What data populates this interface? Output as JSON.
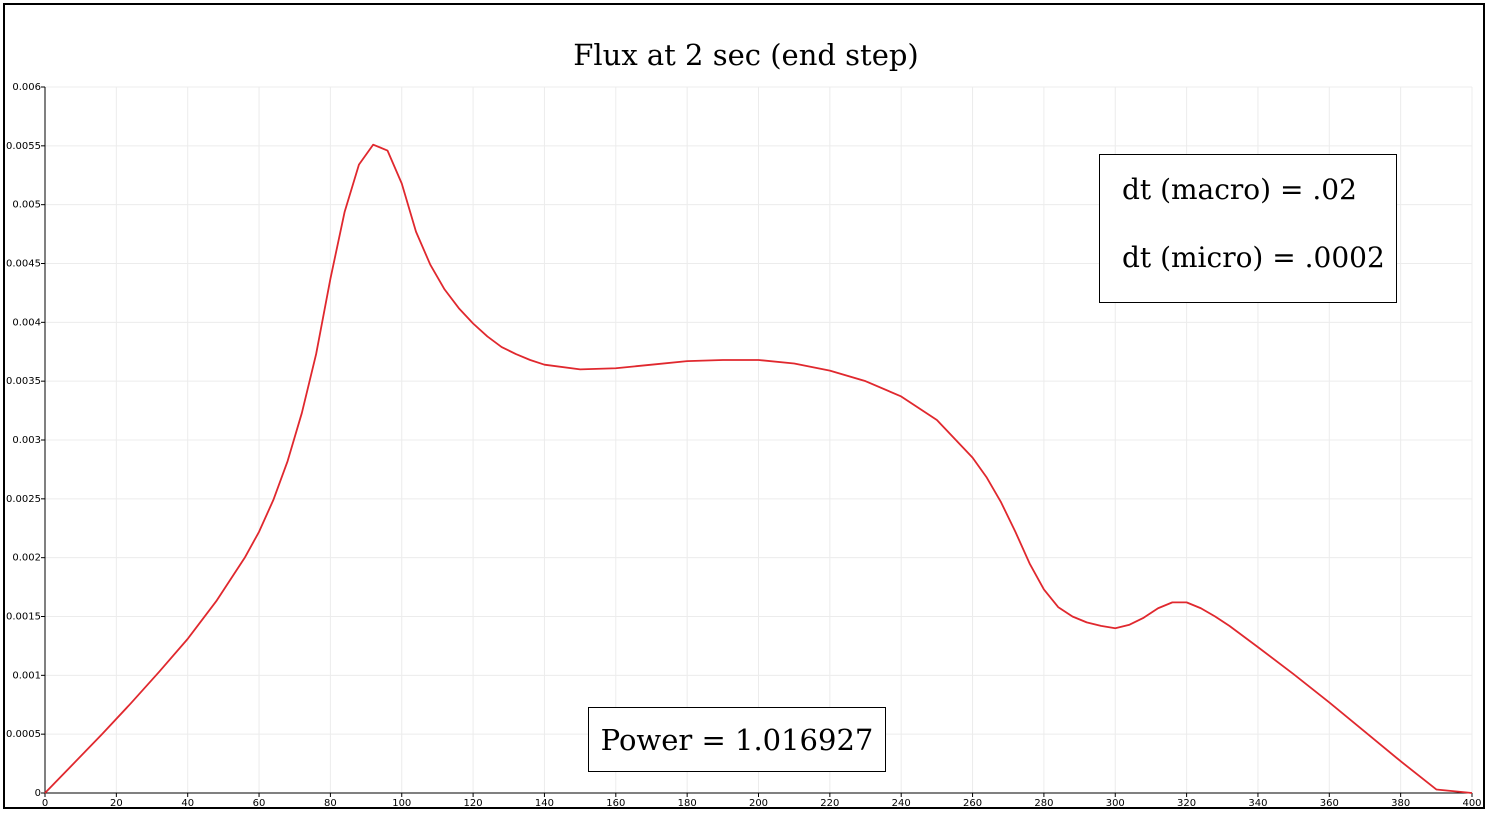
{
  "chart_data": {
    "type": "line",
    "title": "Flux at 2 sec (end step)",
    "xlabel": "",
    "ylabel": "",
    "xlim": [
      0,
      400
    ],
    "ylim": [
      0,
      0.006
    ],
    "grid": true,
    "x_ticks": [
      "0",
      "20",
      "40",
      "60",
      "80",
      "100",
      "120",
      "140",
      "160",
      "180",
      "200",
      "220",
      "240",
      "260",
      "280",
      "300",
      "320",
      "340",
      "360",
      "380",
      "400"
    ],
    "y_ticks": [
      "0",
      "0.0005",
      "0.001",
      "0.0015",
      "0.002",
      "0.0025",
      "0.003",
      "0.0035",
      "0.004",
      "0.0045",
      "0.005",
      "0.0055",
      "0.006"
    ],
    "series_color": "#e0282e",
    "series": [
      {
        "x": [
          0,
          8,
          16,
          24,
          32,
          40,
          48,
          56,
          60,
          64,
          68,
          72,
          76,
          80,
          84,
          88,
          92,
          96,
          100,
          104,
          108,
          112,
          116,
          120,
          124,
          128,
          132,
          136,
          140,
          150,
          160,
          170,
          180,
          190,
          200,
          210,
          220,
          230,
          240,
          250,
          260,
          264,
          268,
          272,
          276,
          280,
          284,
          288,
          292,
          296,
          300,
          304,
          308,
          312,
          316,
          320,
          324,
          328,
          332,
          336,
          340,
          350,
          360,
          370,
          380,
          390,
          400
        ],
        "values": [
          0,
          0.00025,
          0.0005,
          0.00076,
          0.00103,
          0.00131,
          0.00163,
          0.002,
          0.00222,
          0.00249,
          0.00282,
          0.00323,
          0.00373,
          0.00437,
          0.00494,
          0.00534,
          0.00551,
          0.00546,
          0.00518,
          0.00477,
          0.00449,
          0.00428,
          0.00412,
          0.00399,
          0.00388,
          0.00379,
          0.00373,
          0.00368,
          0.00364,
          0.0036,
          0.00361,
          0.00364,
          0.00367,
          0.00368,
          0.00368,
          0.00365,
          0.00359,
          0.0035,
          0.00337,
          0.00317,
          0.00285,
          0.00268,
          0.00247,
          0.00222,
          0.00195,
          0.00173,
          0.00158,
          0.0015,
          0.00145,
          0.00142,
          0.0014,
          0.00143,
          0.00149,
          0.00157,
          0.00162,
          0.00162,
          0.00157,
          0.0015,
          0.00142,
          0.00133,
          0.00124,
          0.00101,
          0.00077,
          0.00052,
          0.00027,
          3e-05,
          0
        ]
      }
    ]
  },
  "annotations": {
    "dt_macro": "dt (macro) = .02",
    "dt_micro": "dt (micro) = .0002",
    "power": "Power = 1.016927"
  }
}
